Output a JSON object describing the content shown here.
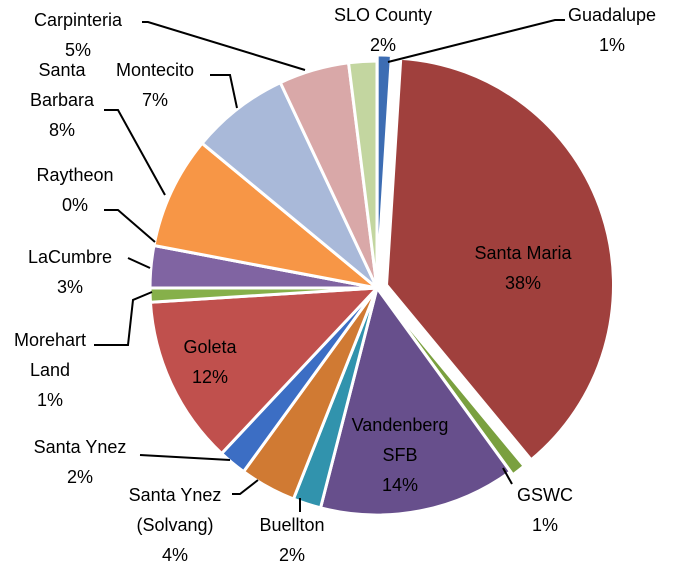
{
  "chart_data": {
    "type": "pie",
    "categories": [
      "Guadalupe",
      "Santa Maria",
      "GSWC",
      "Vandenberg SFB",
      "Buellton",
      "Santa Ynez (Solvang)",
      "Santa Ynez",
      "Goleta",
      "Morehart Land",
      "LaCumbre",
      "Raytheon",
      "Santa Barbara",
      "Montecito",
      "Carpinteria",
      "SLO County"
    ],
    "values": [
      1,
      38,
      1,
      14,
      2,
      4,
      2,
      12,
      1,
      3,
      0,
      8,
      7,
      5,
      2
    ],
    "value_labels": [
      "1%",
      "38%",
      "1%",
      "14%",
      "2%",
      "4%",
      "2%",
      "12%",
      "1%",
      "3%",
      "0%",
      "8%",
      "7%",
      "5%",
      "2%"
    ],
    "colors": [
      "#3d6db3",
      "#a0403d",
      "#7aa03f",
      "#674f8c",
      "#3193ad",
      "#d07a33",
      "#3c6ec4",
      "#c0504d",
      "#86b04a",
      "#8064a2",
      "#4bacc6",
      "#f79646",
      "#a9b9d9",
      "#d9a8a8",
      "#c3d6a0"
    ]
  }
}
